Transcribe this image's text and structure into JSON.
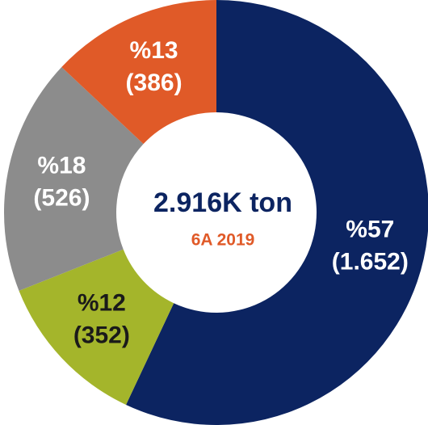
{
  "chart_data": {
    "type": "donut",
    "title": "2.916K ton",
    "subtitle": "6A 2019",
    "categories": [
      null,
      null,
      null,
      null
    ],
    "values": [
      57,
      12,
      18,
      13
    ],
    "value_labels": [
      "%57",
      "%12",
      "%18",
      "%13"
    ],
    "amount_labels": [
      "(1.652)",
      "(352)",
      "(526)",
      "(386)"
    ],
    "colors": [
      "#0c2461",
      "#a4b52b",
      "#8c8c8c",
      "#e05a28"
    ],
    "label_colors": [
      "#ffffff",
      "#1a1a1a",
      "#ffffff",
      "#ffffff"
    ],
    "title_color": "#0c2461",
    "subtitle_color": "#e05a28"
  }
}
